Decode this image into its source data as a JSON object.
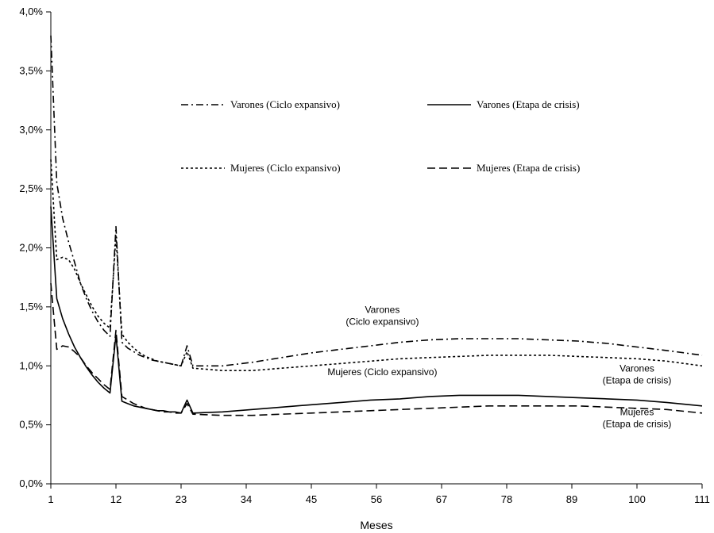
{
  "chart_data": {
    "type": "line",
    "xlabel": "Meses",
    "ylabel": "",
    "xlim": [
      1,
      111
    ],
    "ylim": [
      0,
      4
    ],
    "x_ticks": [
      1,
      12,
      23,
      34,
      45,
      56,
      67,
      78,
      89,
      100,
      111
    ],
    "y_ticks": [
      {
        "value": 0.0,
        "label": "0,0%"
      },
      {
        "value": 0.5,
        "label": "0,5%"
      },
      {
        "value": 1.0,
        "label": "1,0%"
      },
      {
        "value": 1.5,
        "label": "1,5%"
      },
      {
        "value": 2.0,
        "label": "2,0%"
      },
      {
        "value": 2.5,
        "label": "2,5%"
      },
      {
        "value": 3.0,
        "label": "3,0%"
      },
      {
        "value": 3.5,
        "label": "3,5%"
      },
      {
        "value": 4.0,
        "label": "4,0%"
      }
    ],
    "grid": false,
    "legend": "top-center",
    "series": [
      {
        "name": "Varones (Ciclo expansivo)",
        "dash": "dashdot",
        "x": [
          1,
          2,
          3,
          4,
          5,
          6,
          7,
          8,
          9,
          10,
          11,
          12,
          13,
          14,
          15,
          16,
          17,
          18,
          19,
          20,
          21,
          22,
          23,
          24,
          25,
          30,
          35,
          40,
          45,
          50,
          55,
          60,
          65,
          70,
          75,
          80,
          85,
          90,
          95,
          100,
          105,
          111
        ],
        "values": [
          3.8,
          2.55,
          2.25,
          2.05,
          1.88,
          1.7,
          1.57,
          1.46,
          1.37,
          1.3,
          1.25,
          2.18,
          1.2,
          1.15,
          1.12,
          1.09,
          1.07,
          1.05,
          1.04,
          1.03,
          1.02,
          1.01,
          1.0,
          1.17,
          1.0,
          1.0,
          1.03,
          1.07,
          1.11,
          1.14,
          1.17,
          1.2,
          1.22,
          1.23,
          1.23,
          1.23,
          1.22,
          1.21,
          1.19,
          1.16,
          1.13,
          1.09
        ]
      },
      {
        "name": "Varones (Etapa de crisis)",
        "dash": "solid",
        "x": [
          1,
          2,
          3,
          4,
          5,
          6,
          7,
          8,
          9,
          10,
          11,
          12,
          13,
          14,
          15,
          16,
          17,
          18,
          19,
          20,
          21,
          22,
          23,
          24,
          25,
          30,
          35,
          40,
          45,
          50,
          55,
          60,
          65,
          70,
          75,
          80,
          85,
          90,
          95,
          100,
          105,
          111
        ],
        "values": [
          2.35,
          1.57,
          1.4,
          1.27,
          1.16,
          1.07,
          0.99,
          0.92,
          0.86,
          0.81,
          0.77,
          1.26,
          0.7,
          0.68,
          0.66,
          0.65,
          0.64,
          0.63,
          0.62,
          0.62,
          0.61,
          0.61,
          0.6,
          0.71,
          0.6,
          0.61,
          0.63,
          0.65,
          0.67,
          0.69,
          0.71,
          0.72,
          0.74,
          0.75,
          0.75,
          0.75,
          0.74,
          0.73,
          0.72,
          0.71,
          0.69,
          0.66
        ]
      },
      {
        "name": "Mujeres (Ciclo expansivo)",
        "dash": "dotted",
        "x": [
          1,
          2,
          3,
          4,
          5,
          6,
          7,
          8,
          9,
          10,
          11,
          12,
          13,
          14,
          15,
          16,
          17,
          18,
          19,
          20,
          21,
          22,
          23,
          24,
          25,
          30,
          35,
          40,
          45,
          50,
          55,
          60,
          65,
          70,
          75,
          80,
          85,
          90,
          95,
          100,
          105,
          111
        ],
        "values": [
          2.75,
          1.9,
          1.92,
          1.9,
          1.82,
          1.7,
          1.6,
          1.5,
          1.42,
          1.36,
          1.32,
          2.1,
          1.27,
          1.2,
          1.15,
          1.11,
          1.08,
          1.06,
          1.04,
          1.03,
          1.02,
          1.01,
          1.0,
          1.12,
          0.98,
          0.96,
          0.96,
          0.98,
          1.0,
          1.02,
          1.04,
          1.06,
          1.07,
          1.08,
          1.09,
          1.09,
          1.09,
          1.08,
          1.07,
          1.06,
          1.04,
          1.0
        ]
      },
      {
        "name": "Mujeres (Etapa de crisis)",
        "dash": "dashed",
        "x": [
          1,
          2,
          3,
          4,
          5,
          6,
          7,
          8,
          9,
          10,
          11,
          12,
          13,
          14,
          15,
          16,
          17,
          18,
          19,
          20,
          21,
          22,
          23,
          24,
          25,
          30,
          35,
          40,
          45,
          50,
          55,
          60,
          65,
          70,
          75,
          80,
          85,
          90,
          95,
          100,
          105,
          111
        ],
        "values": [
          1.7,
          1.14,
          1.17,
          1.16,
          1.12,
          1.07,
          1.0,
          0.94,
          0.89,
          0.84,
          0.8,
          1.3,
          0.74,
          0.71,
          0.68,
          0.66,
          0.64,
          0.63,
          0.62,
          0.61,
          0.61,
          0.6,
          0.6,
          0.68,
          0.59,
          0.58,
          0.58,
          0.59,
          0.6,
          0.61,
          0.62,
          0.63,
          0.64,
          0.65,
          0.66,
          0.66,
          0.66,
          0.66,
          0.65,
          0.64,
          0.63,
          0.6
        ]
      }
    ],
    "legend_entries": [
      {
        "label": "Varones (Ciclo expansivo)",
        "dash": "dashdot"
      },
      {
        "label": "Varones (Etapa de crisis)",
        "dash": "solid"
      },
      {
        "label": "Mujeres (Ciclo expansivo)",
        "dash": "dotted"
      },
      {
        "label": "Mujeres (Etapa de crisis)",
        "dash": "dashed"
      }
    ],
    "annotations": [
      {
        "lines": [
          "Varones",
          "(Ciclo expansivo)"
        ],
        "x": 57,
        "y": 1.45
      },
      {
        "lines": [
          "Mujeres (Ciclo expansivo)"
        ],
        "x": 57,
        "y": 0.92
      },
      {
        "lines": [
          "Varones",
          "(Etapa de crisis)"
        ],
        "x": 100,
        "y": 0.95
      },
      {
        "lines": [
          "Mujeres",
          "(Etapa de crisis)"
        ],
        "x": 100,
        "y": 0.58
      }
    ]
  }
}
